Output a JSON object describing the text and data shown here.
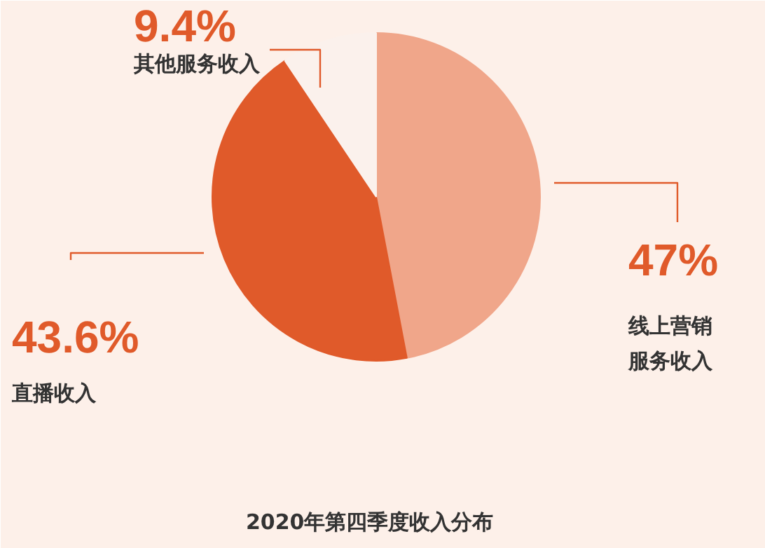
{
  "chart_data": {
    "type": "pie",
    "title": "2020年第四季度收入分布",
    "categories": [
      "线上营销服务收入",
      "直播收入",
      "其他服务收入"
    ],
    "values": [
      47,
      43.6,
      9.4
    ],
    "colors": [
      "#f0a68a",
      "#e05a2a",
      "#fbf1ec"
    ],
    "value_labels": [
      "47%",
      "43.6%",
      "9.4%"
    ]
  }
}
